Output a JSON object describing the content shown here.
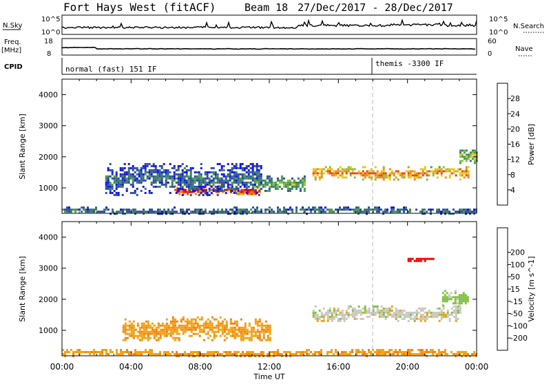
{
  "header": {
    "station": "Fort Hays West (fitACF)",
    "beam": "Beam 18",
    "date_range": "27/Dec/2017 - 28/Dec/2017"
  },
  "strip_labels": {
    "nsky": "N.Sky",
    "nsearch": "N.Search",
    "freq": "Freq.",
    "freq_unit": "[MHz]",
    "nave": "Nave",
    "cpid": "CPID",
    "noise_ticks_left": [
      "10^5",
      "10^0"
    ],
    "noise_ticks_right": [
      "10^5",
      "10^0"
    ],
    "freq_ticks": [
      "18",
      "8"
    ],
    "nave_ticks": [
      "60",
      "0"
    ]
  },
  "cpid": {
    "modes": [
      "normal (fast) 151 IF",
      "themis -3300 IF"
    ],
    "change_time": "18:00"
  },
  "colors": {
    "power": [
      "#1111ee",
      "#2c4ea0",
      "#3a7a6c",
      "#4e9a4e",
      "#8ac040",
      "#e8c818",
      "#f28a10",
      "#ee4410",
      "#dd0000"
    ],
    "velocity": [
      "#ee0000",
      "#f05010",
      "#f28010",
      "#f5a010",
      "#c8c8c0",
      "#c8c8c0",
      "#80c040",
      "#3a8a6a",
      "#2a5fa0",
      "#1a30d0"
    ]
  },
  "chart_data": [
    {
      "type": "heatmap",
      "name": "power",
      "xlabel": "",
      "ylabel": "Slant Range [km]",
      "ylim": [
        180,
        4500
      ],
      "xlim": [
        "00:00",
        "24:00"
      ],
      "yticks": [
        "1000",
        "2000",
        "3000",
        "4000"
      ],
      "colorbar": {
        "label": "Power [dB]",
        "range": [
          0,
          32
        ],
        "ticks": [
          "4",
          "8",
          "12",
          "16",
          "20",
          "24",
          "28"
        ]
      },
      "echo_regions": [
        {
          "x": [
            "06:30",
            "11:30"
          ],
          "range_km": [
            800,
            1100
          ],
          "value_db": 28
        },
        {
          "x": [
            "11:00",
            "14:00"
          ],
          "range_km": [
            900,
            1400
          ],
          "value_db": 14
        },
        {
          "x": [
            "02:30",
            "11:30"
          ],
          "range_km": [
            800,
            1800
          ],
          "value_db": 8
        },
        {
          "x": [
            "14:30",
            "23:30"
          ],
          "range_km": [
            1300,
            1700
          ],
          "value_db": 24
        },
        {
          "x": [
            "23:00",
            "24:00"
          ],
          "range_km": [
            1800,
            2300
          ],
          "value_db": 16
        },
        {
          "x": [
            "00:00",
            "24:00"
          ],
          "range_km": [
            200,
            400
          ],
          "value_db": 10
        }
      ]
    },
    {
      "type": "heatmap",
      "name": "velocity",
      "xlabel": "Time UT",
      "ylabel": "Slant Range [km]",
      "ylim": [
        180,
        4500
      ],
      "xlim": [
        "00:00",
        "24:00"
      ],
      "yticks": [
        "1000",
        "2000",
        "3000",
        "4000"
      ],
      "xticks": [
        "00:00",
        "04:00",
        "08:00",
        "12:00",
        "16:00",
        "20:00",
        "00:00"
      ],
      "colorbar": {
        "label": "Velocity [m s^-1]",
        "ticks": [
          "-200",
          "-100",
          "-50",
          "-15",
          "15",
          "50",
          "100",
          "200"
        ]
      },
      "echo_regions": [
        {
          "x": [
            "03:30",
            "12:00"
          ],
          "range_km": [
            700,
            1450
          ],
          "value_ms": -40
        },
        {
          "x": [
            "14:30",
            "23:00"
          ],
          "range_km": [
            1300,
            1800
          ],
          "value_ms": 0
        },
        {
          "x": [
            "22:00",
            "23:30"
          ],
          "range_km": [
            1800,
            2300
          ],
          "value_ms": 30
        },
        {
          "x": [
            "20:00",
            "21:30"
          ],
          "range_km": [
            3250,
            3400
          ],
          "value_ms": -220
        },
        {
          "x": [
            "00:00",
            "24:00"
          ],
          "range_km": [
            200,
            400
          ],
          "value_ms": -40
        }
      ]
    }
  ]
}
